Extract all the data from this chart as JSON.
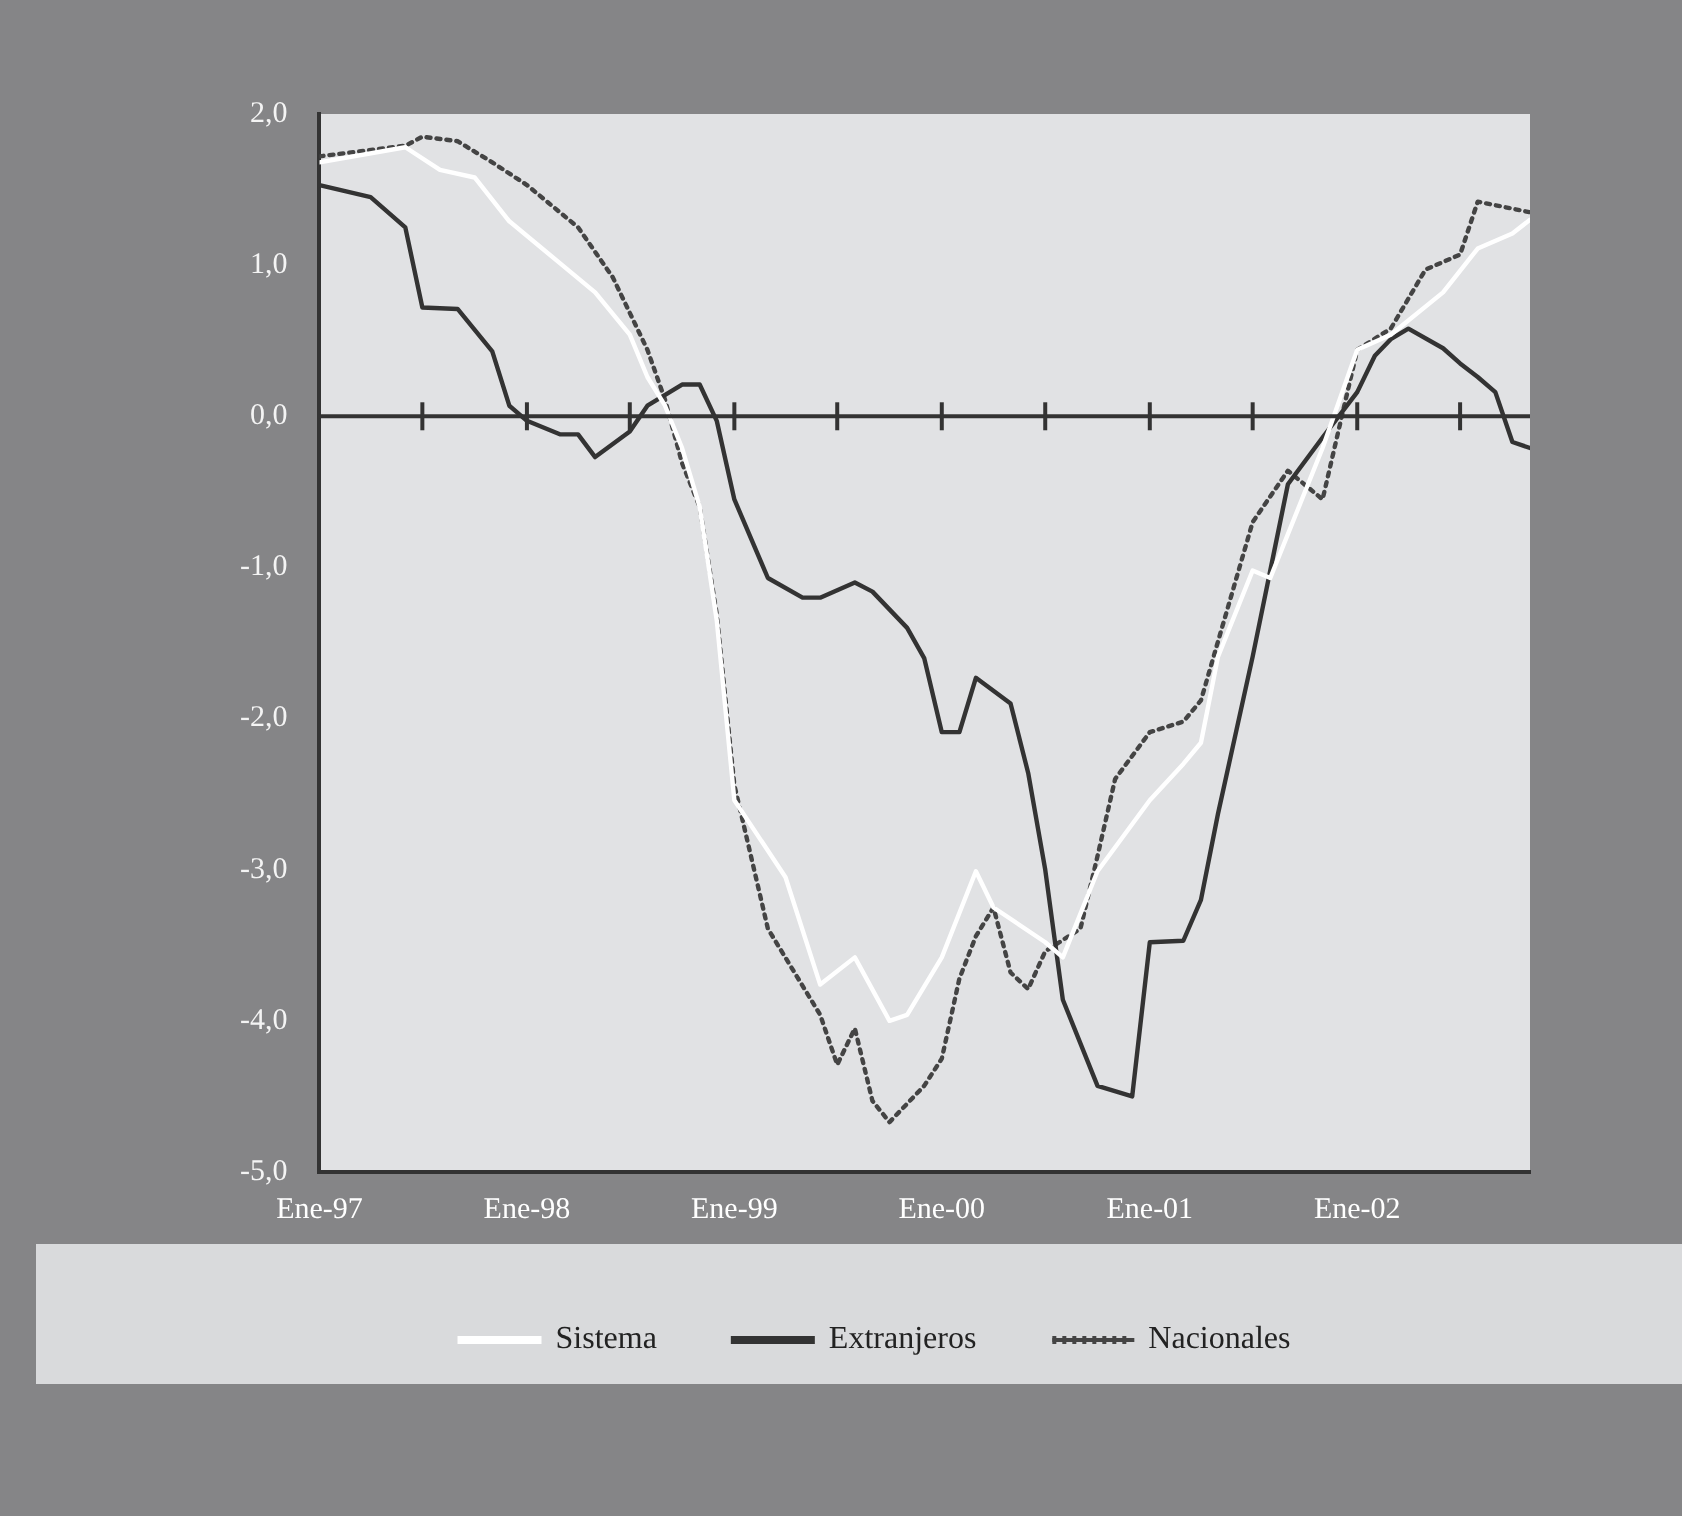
{
  "chart_data": {
    "type": "line",
    "xlim": [
      "1997-01",
      "2002-11"
    ],
    "xticks": [
      {
        "value": "1997-01",
        "label": "Ene-97"
      },
      {
        "value": "1997-07",
        "label": null
      },
      {
        "value": "1998-01",
        "label": "Ene-98"
      },
      {
        "value": "1998-07",
        "label": null
      },
      {
        "value": "1999-01",
        "label": "Ene-99"
      },
      {
        "value": "1999-07",
        "label": null
      },
      {
        "value": "2000-01",
        "label": "Ene-00"
      },
      {
        "value": "2000-07",
        "label": null
      },
      {
        "value": "2001-01",
        "label": "Ene-01"
      },
      {
        "value": "2001-07",
        "label": null
      },
      {
        "value": "2002-01",
        "label": "Ene-02"
      },
      {
        "value": "2002-07",
        "label": null
      }
    ],
    "ylim": [
      -5,
      2
    ],
    "yticks": [
      {
        "value": 2,
        "label": "2,0"
      },
      {
        "value": 1,
        "label": "1,0"
      },
      {
        "value": 0,
        "label": "0,0"
      },
      {
        "value": -1,
        "label": "-1,0"
      },
      {
        "value": -2,
        "label": "-2,0"
      },
      {
        "value": -3,
        "label": "-3,0"
      },
      {
        "value": -4,
        "label": "-4,0"
      },
      {
        "value": -5,
        "label": "-5,0"
      }
    ],
    "ref_lines": [
      {
        "axis": "y",
        "value": 0,
        "color": "#333333"
      }
    ],
    "legend": "bottom",
    "grid": false,
    "series": [
      {
        "name": "Sistema",
        "color": "#ffffff",
        "line_style": "solid",
        "x": [
          "1997-01",
          "1997-06",
          "1997-08",
          "1997-10",
          "1997-12",
          "1998-03",
          "1998-05",
          "1998-07",
          "1998-08",
          "1998-09",
          "1998-10",
          "1998-11",
          "1998-12",
          "1999-01",
          "1999-04",
          "1999-06",
          "1999-08",
          "1999-10",
          "1999-11",
          "2000-01",
          "2000-03",
          "2000-04",
          "2000-07",
          "2000-08",
          "2000-10",
          "2001-01",
          "2001-03",
          "2001-04",
          "2001-05",
          "2001-07",
          "2001-08",
          "2001-11",
          "2002-01",
          "2002-03",
          "2002-06",
          "2002-08",
          "2002-10",
          "2002-11"
        ],
        "values": [
          1.68,
          1.78,
          1.63,
          1.58,
          1.29,
          1.01,
          0.82,
          0.54,
          0.26,
          0.07,
          -0.21,
          -0.6,
          -1.35,
          -2.54,
          -3.05,
          -3.76,
          -3.58,
          -4.0,
          -3.96,
          -3.58,
          -3.01,
          -3.25,
          -3.48,
          -3.58,
          -3.01,
          -2.54,
          -2.3,
          -2.16,
          -1.59,
          -1.02,
          -1.07,
          -0.21,
          0.44,
          0.54,
          0.82,
          1.11,
          1.21,
          1.3
        ]
      },
      {
        "name": "Extranjeros",
        "color": "#333333",
        "line_style": "solid",
        "x": [
          "1997-01",
          "1997-04",
          "1997-06",
          "1997-07",
          "1997-09",
          "1997-11",
          "1997-12",
          "1998-01",
          "1998-03",
          "1998-04",
          "1998-05",
          "1998-07",
          "1998-08",
          "1998-10",
          "1998-11",
          "1998-12",
          "1999-01",
          "1999-03",
          "1999-05",
          "1999-06",
          "1999-08",
          "1999-09",
          "1999-11",
          "1999-12",
          "2000-01",
          "2000-02",
          "2000-03",
          "2000-05",
          "2000-06",
          "2000-07",
          "2000-08",
          "2000-10",
          "2000-12",
          "2001-01",
          "2001-03",
          "2001-04",
          "2001-05",
          "2001-07",
          "2001-08",
          "2001-09",
          "2001-11",
          "2002-01",
          "2002-02",
          "2002-03",
          "2002-04",
          "2002-06",
          "2002-07",
          "2002-08",
          "2002-09",
          "2002-10",
          "2002-11"
        ],
        "values": [
          1.53,
          1.45,
          1.25,
          0.72,
          0.71,
          0.43,
          0.07,
          -0.03,
          -0.12,
          -0.12,
          -0.27,
          -0.1,
          0.07,
          0.21,
          0.21,
          -0.03,
          -0.55,
          -1.07,
          -1.2,
          -1.2,
          -1.1,
          -1.16,
          -1.4,
          -1.6,
          -2.09,
          -2.09,
          -1.73,
          -1.9,
          -2.36,
          -3.0,
          -3.86,
          -4.43,
          -4.5,
          -3.48,
          -3.47,
          -3.2,
          -2.63,
          -1.59,
          -1.02,
          -0.45,
          -0.14,
          0.16,
          0.4,
          0.51,
          0.58,
          0.45,
          0.35,
          0.26,
          0.16,
          -0.17,
          -0.21
        ]
      },
      {
        "name": "Nacionales",
        "color": "#444444",
        "line_style": "dotted",
        "x": [
          "1997-01",
          "1997-06",
          "1997-07",
          "1997-09",
          "1997-11",
          "1998-01",
          "1998-04",
          "1998-06",
          "1998-08",
          "1998-09",
          "1998-10",
          "1998-11",
          "1998-12",
          "1999-01",
          "1999-03",
          "1999-06",
          "1999-07",
          "1999-08",
          "1999-09",
          "1999-10",
          "1999-12",
          "2000-01",
          "2000-02",
          "2000-03",
          "2000-04",
          "2000-05",
          "2000-06",
          "2000-07",
          "2000-09",
          "2000-10",
          "2000-11",
          "2001-01",
          "2001-03",
          "2001-04",
          "2001-05",
          "2001-07",
          "2001-09",
          "2001-11",
          "2002-01",
          "2002-03",
          "2002-05",
          "2002-07",
          "2002-08",
          "2002-11"
        ],
        "values": [
          1.72,
          1.79,
          1.85,
          1.82,
          1.68,
          1.53,
          1.25,
          0.92,
          0.44,
          0.11,
          -0.31,
          -0.6,
          -1.31,
          -2.44,
          -3.39,
          -3.96,
          -4.29,
          -4.05,
          -4.53,
          -4.67,
          -4.43,
          -4.25,
          -3.72,
          -3.44,
          -3.25,
          -3.68,
          -3.79,
          -3.54,
          -3.39,
          -2.91,
          -2.4,
          -2.09,
          -2.02,
          -1.88,
          -1.49,
          -0.7,
          -0.36,
          -0.55,
          0.44,
          0.58,
          0.97,
          1.07,
          1.42,
          1.35
        ]
      }
    ]
  }
}
